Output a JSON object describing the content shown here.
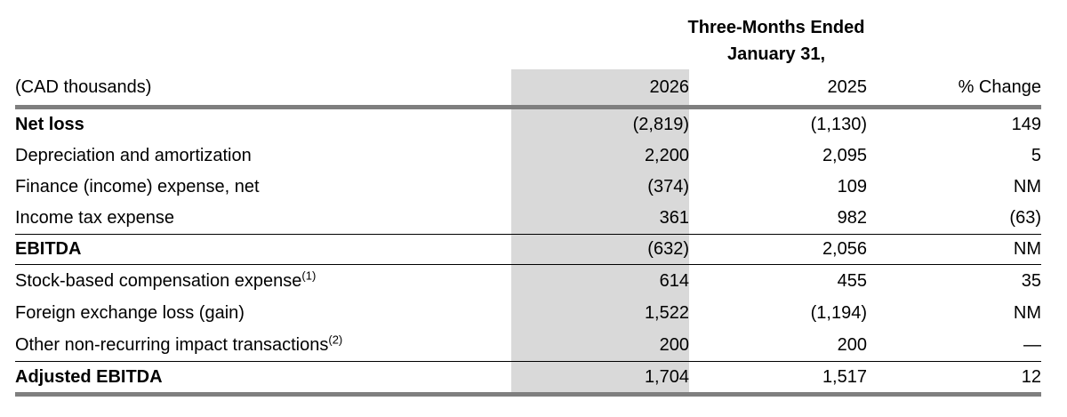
{
  "period_header": {
    "line1": "Three-Months Ended",
    "line2": "January 31,"
  },
  "table": {
    "unit_label": "(CAD thousands)",
    "columns": [
      "2026",
      "2025",
      "% Change"
    ],
    "rows": [
      {
        "label": "Net loss",
        "footnote": "",
        "bold": true,
        "rule_below": "none",
        "v2026": "(2,819)",
        "v2025": "(1,130)",
        "change": "149"
      },
      {
        "label": "Depreciation and amortization",
        "footnote": "",
        "bold": false,
        "rule_below": "none",
        "v2026": "2,200",
        "v2025": "2,095",
        "change": "5"
      },
      {
        "label": "Finance (income) expense, net",
        "footnote": "",
        "bold": false,
        "rule_below": "none",
        "v2026": "(374)",
        "v2025": "109",
        "change": "NM"
      },
      {
        "label": "Income tax expense",
        "footnote": "",
        "bold": false,
        "rule_below": "thin",
        "v2026": "361",
        "v2025": "982",
        "change": "(63)"
      },
      {
        "label": "EBITDA",
        "footnote": "",
        "bold": true,
        "rule_below": "thin",
        "v2026": "(632)",
        "v2025": "2,056",
        "change": "NM"
      },
      {
        "label": "Stock-based compensation expense",
        "footnote": "(1)",
        "bold": false,
        "rule_below": "none",
        "v2026": "614",
        "v2025": "455",
        "change": "35"
      },
      {
        "label": "Foreign exchange loss (gain)",
        "footnote": "",
        "bold": false,
        "rule_below": "none",
        "v2026": "1,522",
        "v2025": "(1,194)",
        "change": "NM"
      },
      {
        "label": "Other non-recurring impact transactions",
        "footnote": "(2)",
        "bold": false,
        "rule_below": "thin",
        "v2026": "200",
        "v2025": "200",
        "change": "—"
      },
      {
        "label": "Adjusted EBITDA",
        "footnote": "",
        "bold": true,
        "rule_below": "heavy",
        "v2026": "1,704",
        "v2025": "1,517",
        "change": "12"
      }
    ]
  },
  "colors": {
    "column_highlight": "#d9d9d9",
    "heavy_rule": "#7f7f7f",
    "thin_rule": "#000000"
  }
}
